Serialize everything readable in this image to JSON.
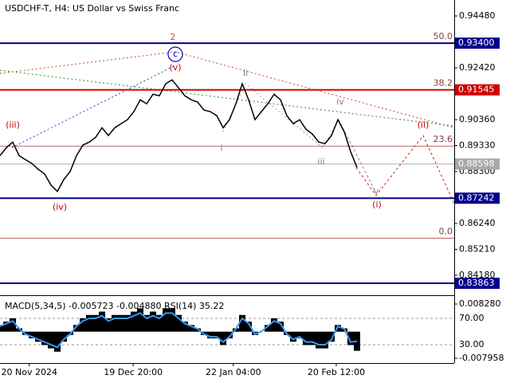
{
  "chart_data": [
    {
      "type": "line",
      "title": "USDCHF-T, H4:  US Dollar vs Swiss Franc",
      "color": "#000000",
      "values": [
        0.8893,
        0.8925,
        0.8947,
        0.8893,
        0.8877,
        0.8862,
        0.8839,
        0.882,
        0.8776,
        0.8751,
        0.8798,
        0.883,
        0.8893,
        0.8935,
        0.8947,
        0.8966,
        0.9004,
        0.8973,
        0.9004,
        0.902,
        0.9036,
        0.9068,
        0.9115,
        0.9099,
        0.9137,
        0.9131,
        0.9179,
        0.9194,
        0.9163,
        0.9131,
        0.9115,
        0.9106,
        0.9074,
        0.9068,
        0.9052,
        0.9004,
        0.9036,
        0.9099,
        0.9179,
        0.9115,
        0.9036,
        0.9068,
        0.9099,
        0.9137,
        0.9115,
        0.9052,
        0.902,
        0.9036,
        0.8998,
        0.8979,
        0.8947,
        0.8941,
        0.8973,
        0.9036,
        0.8988,
        0.8909,
        0.8846
      ],
      "xlim": [
        0,
        71.25
      ],
      "ylim": [
        0.83387,
        0.95114
      ],
      "yticks": [
        {
          "value": 0.9448,
          "label": "0.94480"
        },
        {
          "value": 0.9242,
          "label": "0.92420"
        },
        {
          "value": 0.9036,
          "label": "0.90360"
        },
        {
          "value": 0.8933,
          "label": "0.89330"
        },
        {
          "value": 0.883,
          "label": "0.88300"
        },
        {
          "value": 0.8624,
          "label": "0.86240"
        },
        {
          "value": 0.8521,
          "label": "0.85210"
        },
        {
          "value": 0.8418,
          "label": "0.84180"
        }
      ],
      "levels": [
        {
          "value": 0.934,
          "label": "0.93400",
          "color": "#00008b"
        },
        {
          "value": 0.91545,
          "label": "0.91545",
          "color": "#d00000"
        },
        {
          "value": 0.87242,
          "label": "0.87242",
          "color": "#00008b"
        },
        {
          "value": 0.83863,
          "label": "0.83863",
          "color": "#00008b"
        }
      ],
      "current_price": {
        "value": 0.88598,
        "label": "0.88598",
        "color": "#a9a9a9"
      },
      "fib_levels": [
        {
          "label": "50.0",
          "price": 0.934
        },
        {
          "label": "38.2",
          "price": 0.91545
        },
        {
          "label": "23.6",
          "price": 0.8931
        },
        {
          "label": "0.0",
          "price": 0.8565
        }
      ],
      "wave_labels": [
        {
          "text": "2",
          "color": "#c0504d"
        },
        {
          "text": "c",
          "color": "#0000cd"
        },
        {
          "text": "(v)",
          "color": "#d00000"
        },
        {
          "text": "(iii)",
          "color": "#d00000"
        },
        {
          "text": "(iv)",
          "color": "#d00000"
        },
        {
          "text": "ii",
          "color": "#808080"
        },
        {
          "text": "i",
          "color": "#808080"
        },
        {
          "text": "iii",
          "color": "#808080"
        },
        {
          "text": "iv",
          "color": "#808080"
        },
        {
          "text": "v",
          "color": "#808080"
        },
        {
          "text": "(i)",
          "color": "#d00000"
        },
        {
          "text": "(ii)",
          "color": "#d00000"
        }
      ]
    },
    {
      "type": "bar",
      "title": "MACD(5,34,5) -0.005723 -0.004880 RSI(14) 35.22",
      "xlim": [
        0,
        71.25
      ],
      "xticks": [
        {
          "value": 4.6,
          "label": "20 Nov 2024"
        },
        {
          "value": 20.9,
          "label": "19 Dec 20:00"
        },
        {
          "value": 36.6,
          "label": "22 Jan 04:00"
        },
        {
          "value": 52.75,
          "label": "20 Feb 12:00"
        }
      ],
      "ylim": [
        -0.009391,
        0.010429
      ],
      "yticks": [
        {
          "value": 0.00828,
          "label": "0.008280"
        },
        {
          "value": -0.007958,
          "label": "-0.007958"
        }
      ],
      "y2lim": [
        2.1,
        102.7
      ],
      "y2ticks": [
        {
          "value": 70,
          "label": "70.00"
        },
        {
          "value": 30,
          "label": "30.00"
        }
      ],
      "series": [
        {
          "name": "MACD",
          "color": "#000000",
          "values": [
            0.002,
            0.003,
            0.004,
            0.001,
            -0.001,
            -0.002,
            -0.003,
            -0.004,
            -0.005,
            -0.006,
            -0.003,
            -0.001,
            0.002,
            0.004,
            0.005,
            0.005,
            0.006,
            0.004,
            0.005,
            0.005,
            0.005,
            0.006,
            0.007,
            0.005,
            0.006,
            0.005,
            0.007,
            0.007,
            0.005,
            0.003,
            0.002,
            0.001,
            -0.001,
            -0.002,
            -0.002,
            -0.004,
            -0.002,
            0.001,
            0.005,
            0.003,
            -0.001,
            0,
            0.002,
            0.004,
            0.003,
            -0.001,
            -0.003,
            -0.002,
            -0.004,
            -0.004,
            -0.005,
            -0.005,
            -0.003,
            0.002,
            0.001,
            -0.004,
            -0.005723
          ]
        },
        {
          "name": "RSI",
          "color": "#3399ff",
          "axis": "y2",
          "values": [
            58,
            62,
            66,
            54,
            46,
            42,
            38,
            34,
            30,
            26,
            38,
            46,
            58,
            66,
            70,
            70,
            74,
            66,
            70,
            70,
            70,
            74,
            78,
            70,
            74,
            70,
            78,
            78,
            70,
            62,
            58,
            54,
            46,
            42,
            42,
            34,
            42,
            54,
            70,
            62,
            46,
            50,
            58,
            66,
            62,
            46,
            38,
            42,
            34,
            34,
            30,
            30,
            38,
            58,
            54,
            34,
            35.22
          ]
        }
      ]
    }
  ]
}
